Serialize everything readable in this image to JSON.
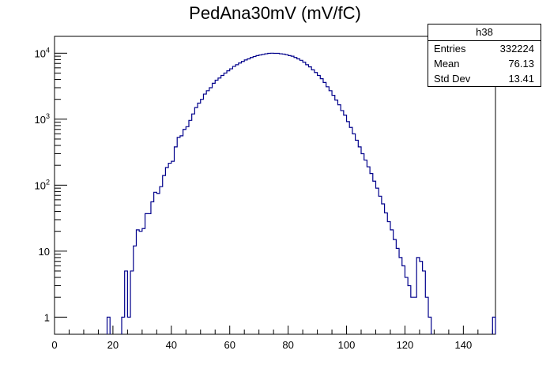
{
  "chart_data": {
    "type": "histogram",
    "title": "PedAna30mV (mV/fC)",
    "xlabel": "",
    "ylabel": "",
    "xlim": [
      0,
      151
    ],
    "ylim": [
      0.55,
      18000
    ],
    "y_scale": "log",
    "bin_width": 1,
    "x_ticks": [
      0,
      20,
      40,
      60,
      80,
      100,
      120,
      140
    ],
    "y_ticks": [
      {
        "value": 1,
        "base": "1",
        "exp": ""
      },
      {
        "value": 10,
        "base": "10",
        "exp": ""
      },
      {
        "value": 100,
        "base": "10",
        "exp": "2"
      },
      {
        "value": 1000,
        "base": "10",
        "exp": "3"
      },
      {
        "value": 10000,
        "base": "10",
        "exp": "4"
      }
    ],
    "line_color": "#00008b",
    "bins": [
      [
        18,
        1
      ],
      [
        23,
        1
      ],
      [
        24,
        5
      ],
      [
        25,
        1
      ],
      [
        26,
        5
      ],
      [
        27,
        12
      ],
      [
        28,
        21
      ],
      [
        29,
        20
      ],
      [
        30,
        22
      ],
      [
        31,
        37
      ],
      [
        32,
        37
      ],
      [
        33,
        56
      ],
      [
        34,
        78
      ],
      [
        35,
        75
      ],
      [
        36,
        95
      ],
      [
        37,
        140
      ],
      [
        38,
        185
      ],
      [
        39,
        215
      ],
      [
        40,
        230
      ],
      [
        41,
        380
      ],
      [
        42,
        530
      ],
      [
        43,
        560
      ],
      [
        44,
        700
      ],
      [
        45,
        770
      ],
      [
        46,
        960
      ],
      [
        47,
        1200
      ],
      [
        48,
        1500
      ],
      [
        49,
        1750
      ],
      [
        50,
        2000
      ],
      [
        51,
        2400
      ],
      [
        52,
        2700
      ],
      [
        53,
        3000
      ],
      [
        54,
        3500
      ],
      [
        55,
        3900
      ],
      [
        56,
        4200
      ],
      [
        57,
        4600
      ],
      [
        58,
        5000
      ],
      [
        59,
        5400
      ],
      [
        60,
        5800
      ],
      [
        61,
        6300
      ],
      [
        62,
        6700
      ],
      [
        63,
        7100
      ],
      [
        64,
        7500
      ],
      [
        65,
        7900
      ],
      [
        66,
        8200
      ],
      [
        67,
        8600
      ],
      [
        68,
        8900
      ],
      [
        69,
        9200
      ],
      [
        70,
        9400
      ],
      [
        71,
        9600
      ],
      [
        72,
        9800
      ],
      [
        73,
        9950
      ],
      [
        74,
        10000
      ],
      [
        75,
        9950
      ],
      [
        76,
        9950
      ],
      [
        77,
        9800
      ],
      [
        78,
        9700
      ],
      [
        79,
        9500
      ],
      [
        80,
        9200
      ],
      [
        81,
        9000
      ],
      [
        82,
        8600
      ],
      [
        83,
        8200
      ],
      [
        84,
        7800
      ],
      [
        85,
        7300
      ],
      [
        86,
        6700
      ],
      [
        87,
        6200
      ],
      [
        88,
        5600
      ],
      [
        89,
        5100
      ],
      [
        90,
        4600
      ],
      [
        91,
        4100
      ],
      [
        92,
        3600
      ],
      [
        93,
        3100
      ],
      [
        94,
        2700
      ],
      [
        95,
        2300
      ],
      [
        96,
        1950
      ],
      [
        97,
        1650
      ],
      [
        98,
        1350
      ],
      [
        99,
        1150
      ],
      [
        100,
        920
      ],
      [
        101,
        750
      ],
      [
        102,
        600
      ],
      [
        103,
        480
      ],
      [
        104,
        380
      ],
      [
        105,
        300
      ],
      [
        106,
        240
      ],
      [
        107,
        190
      ],
      [
        108,
        150
      ],
      [
        109,
        115
      ],
      [
        110,
        90
      ],
      [
        111,
        68
      ],
      [
        112,
        52
      ],
      [
        113,
        38
      ],
      [
        114,
        28
      ],
      [
        115,
        21
      ],
      [
        116,
        15
      ],
      [
        117,
        11
      ],
      [
        118,
        8
      ],
      [
        119,
        6
      ],
      [
        120,
        4
      ],
      [
        121,
        3
      ],
      [
        122,
        2
      ],
      [
        123,
        2
      ],
      [
        124,
        8
      ],
      [
        125,
        7
      ],
      [
        126,
        5
      ],
      [
        127,
        2
      ],
      [
        128,
        1
      ]
    ],
    "overflow_bins": [
      [
        150,
        1
      ]
    ]
  },
  "stats": {
    "name": "h38",
    "entries_label": "Entries",
    "entries_value": "332224",
    "mean_label": "Mean",
    "mean_value": "76.13",
    "std_label": "Std Dev",
    "std_value": "13.41"
  }
}
